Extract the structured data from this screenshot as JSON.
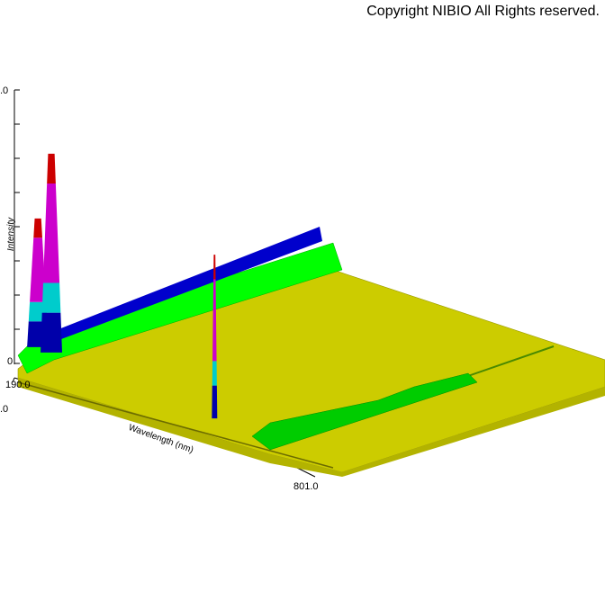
{
  "copyright": "Copyright NIBIO All Rights reserved.",
  "colors": {
    "background": "#ffffff",
    "baseline_surface": "#cccc00",
    "ridge": "#00ff00",
    "ridge_dark": "#009900",
    "band1": "#0000aa",
    "band2": "#00cccc",
    "band3": "#cc00cc",
    "band4": "#cc0000"
  },
  "chart_data": {
    "type": "surface",
    "xlabel": "Wavelength (nm)",
    "ylabel": "Intensity",
    "x_ticks": [
      "190.0",
      "801.0"
    ],
    "y_ticks_visible": [
      "0",
      ".0",
      ".0"
    ],
    "z_tick_partial": ".0",
    "series": [
      {
        "peak_wavelength": 195,
        "relative_height": 0.55
      },
      {
        "peak_wavelength": 230,
        "relative_height": 0.85
      },
      {
        "peak_wavelength": 656,
        "relative_height": 0.7
      }
    ]
  }
}
